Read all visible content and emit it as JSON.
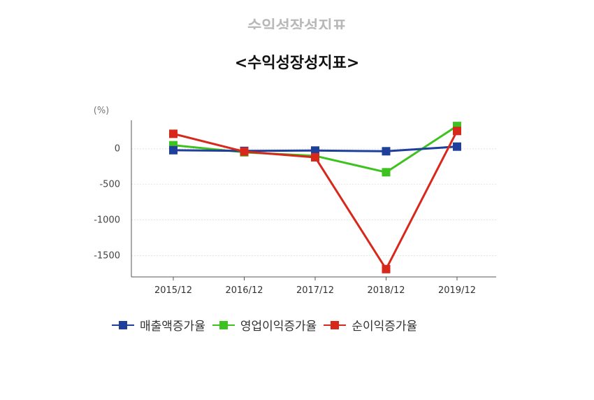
{
  "ghost_title": "수익성장성지표",
  "chart_data": {
    "type": "line",
    "title": "<수익성장성지표>",
    "ylabel": "(%)",
    "xlabel": "",
    "categories": [
      "2015/12",
      "2016/12",
      "2017/12",
      "2018/12",
      "2019/12"
    ],
    "ylim": [
      -1800,
      400
    ],
    "yticks": [
      0,
      -500,
      -1000,
      -1500
    ],
    "ytick_labels": [
      "0",
      "-500",
      "-1000",
      "-1500"
    ],
    "grid": true,
    "legend_position": "bottom",
    "series": [
      {
        "name": "매출액증가율",
        "color": "#1f3f9a",
        "values": [
          -20,
          -30,
          -25,
          -35,
          30
        ]
      },
      {
        "name": "영업이익증가율",
        "color": "#3ec21f",
        "values": [
          50,
          -50,
          -100,
          -330,
          320
        ]
      },
      {
        "name": "순이익증가율",
        "color": "#d8281c",
        "values": [
          210,
          -40,
          -120,
          -1690,
          250
        ]
      }
    ]
  }
}
